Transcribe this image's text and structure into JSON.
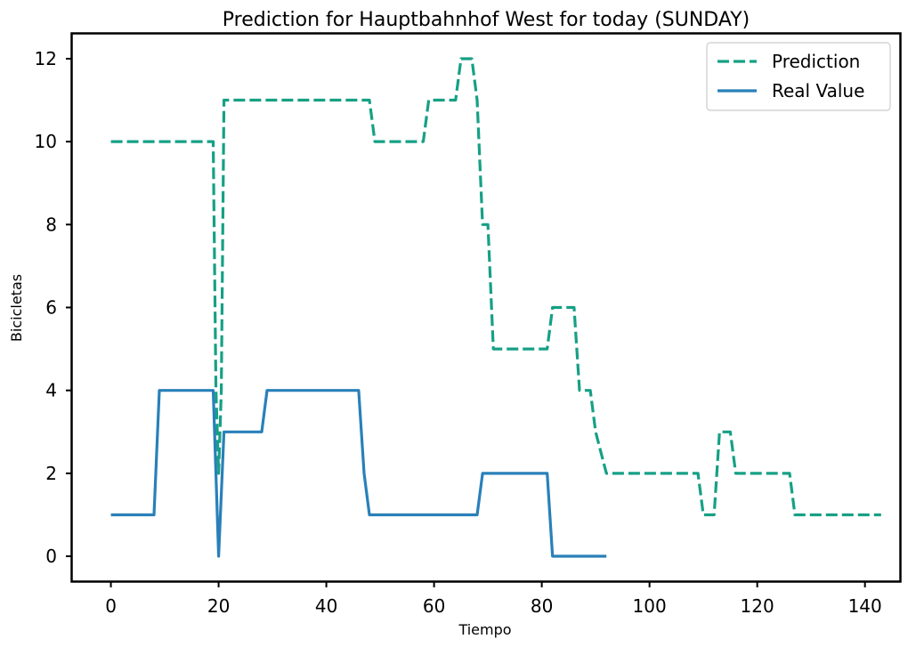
{
  "chart_data": {
    "type": "line",
    "title": "Prediction for Hauptbahnhof West for today (SUNDAY)",
    "xlabel": "Tiempo",
    "ylabel": "Bicicletas",
    "xlim": [
      -7.2,
      146.5
    ],
    "ylim": [
      -0.6,
      12.6
    ],
    "xticks": [
      0,
      20,
      40,
      60,
      80,
      100,
      120,
      140
    ],
    "yticks": [
      0,
      2,
      4,
      6,
      8,
      10,
      12
    ],
    "grid": false,
    "legend_position": "top-right",
    "series": [
      {
        "name": "Prediction",
        "color": "#16a085",
        "style": "dashed",
        "points": [
          [
            0,
            10
          ],
          [
            19,
            10
          ],
          [
            19.5,
            4
          ],
          [
            20,
            2
          ],
          [
            20.5,
            4
          ],
          [
            21,
            11
          ],
          [
            48,
            11
          ],
          [
            49,
            10
          ],
          [
            58,
            10
          ],
          [
            59,
            11
          ],
          [
            64,
            11
          ],
          [
            65,
            12
          ],
          [
            67,
            12
          ],
          [
            68,
            11
          ],
          [
            69,
            8
          ],
          [
            70,
            8
          ],
          [
            71,
            5
          ],
          [
            81,
            5
          ],
          [
            82,
            6
          ],
          [
            86,
            6
          ],
          [
            87,
            4
          ],
          [
            88,
            4
          ],
          [
            89,
            4
          ],
          [
            90,
            3
          ],
          [
            92,
            2
          ],
          [
            109,
            2
          ],
          [
            110,
            1
          ],
          [
            112,
            1
          ],
          [
            113,
            3
          ],
          [
            115,
            3
          ],
          [
            116,
            2
          ],
          [
            126,
            2
          ],
          [
            127,
            1
          ],
          [
            143,
            1
          ]
        ]
      },
      {
        "name": "Real Value",
        "color": "#2980b9",
        "style": "solid",
        "points": [
          [
            0,
            1
          ],
          [
            8,
            1
          ],
          [
            9,
            4
          ],
          [
            19,
            4
          ],
          [
            20,
            0
          ],
          [
            21,
            3
          ],
          [
            28,
            3
          ],
          [
            29,
            4
          ],
          [
            46,
            4
          ],
          [
            47,
            2
          ],
          [
            48,
            1
          ],
          [
            68,
            1
          ],
          [
            69,
            2
          ],
          [
            81,
            2
          ],
          [
            82,
            0
          ],
          [
            92,
            0
          ]
        ]
      }
    ]
  }
}
